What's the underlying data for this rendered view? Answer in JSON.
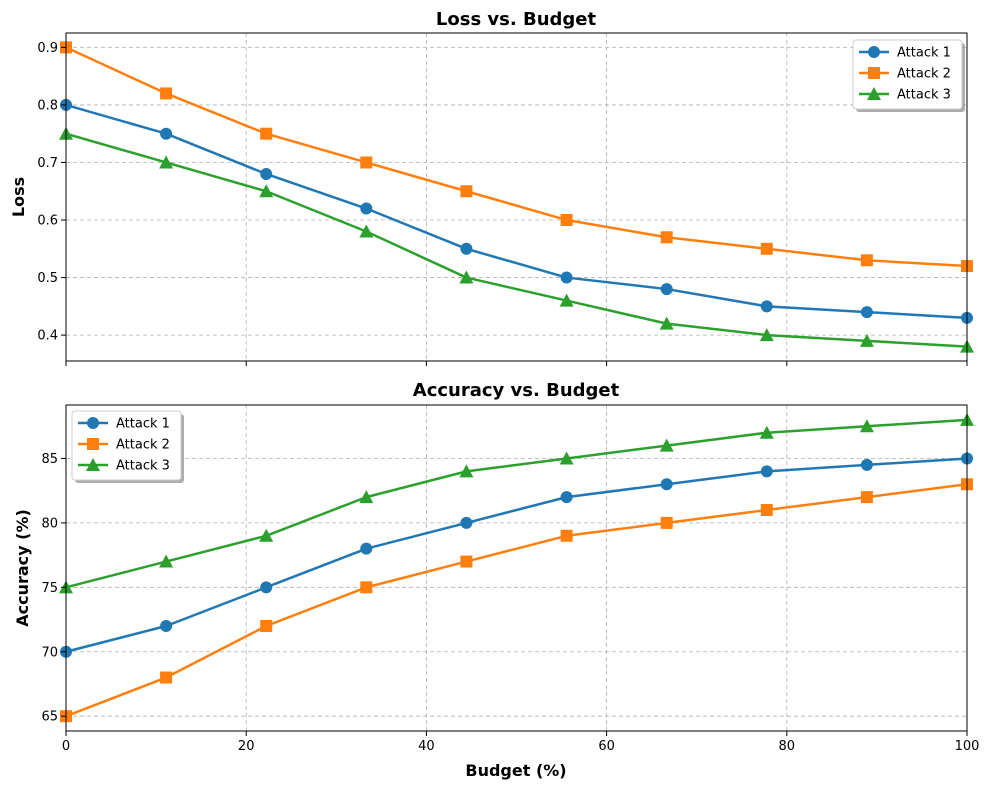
{
  "chart_data": [
    {
      "type": "line",
      "title": "Loss vs. Budget",
      "xlabel": "",
      "ylabel": "Loss",
      "xlim": [
        0,
        100
      ],
      "ylim": [
        0.355,
        0.925
      ],
      "xticks": [
        0,
        20,
        40,
        60,
        80,
        100
      ],
      "xtick_labels": [],
      "yticks": [
        0.4,
        0.5,
        0.6,
        0.7,
        0.8,
        0.9
      ],
      "ytick_labels": [
        "0.4",
        "0.5",
        "0.6",
        "0.7",
        "0.8",
        "0.9"
      ],
      "grid": true,
      "legend_position": "top-right",
      "x": [
        0,
        11.11,
        22.22,
        33.33,
        44.44,
        55.56,
        66.67,
        77.78,
        88.89,
        100
      ],
      "series": [
        {
          "name": "Attack 1",
          "color": "#1f77b4",
          "marker": "circle",
          "values": [
            0.8,
            0.75,
            0.68,
            0.62,
            0.55,
            0.5,
            0.48,
            0.45,
            0.44,
            0.43
          ]
        },
        {
          "name": "Attack 2",
          "color": "#ff7f0e",
          "marker": "square",
          "values": [
            0.9,
            0.82,
            0.75,
            0.7,
            0.65,
            0.6,
            0.57,
            0.55,
            0.53,
            0.52
          ]
        },
        {
          "name": "Attack 3",
          "color": "#2ca02c",
          "marker": "triangle",
          "values": [
            0.75,
            0.7,
            0.65,
            0.58,
            0.5,
            0.46,
            0.42,
            0.4,
            0.39,
            0.38
          ]
        }
      ]
    },
    {
      "type": "line",
      "title": "Accuracy vs. Budget",
      "xlabel": "Budget (%)",
      "ylabel": "Accuracy (%)",
      "xlim": [
        0,
        100
      ],
      "ylim": [
        63.85,
        89.15
      ],
      "xticks": [
        0,
        20,
        40,
        60,
        80,
        100
      ],
      "xtick_labels": [
        "0",
        "20",
        "40",
        "60",
        "80",
        "100"
      ],
      "yticks": [
        65,
        70,
        75,
        80,
        85
      ],
      "ytick_labels": [
        "65",
        "70",
        "75",
        "80",
        "85"
      ],
      "grid": true,
      "legend_position": "top-left",
      "x": [
        0,
        11.11,
        22.22,
        33.33,
        44.44,
        55.56,
        66.67,
        77.78,
        88.89,
        100
      ],
      "series": [
        {
          "name": "Attack 1",
          "color": "#1f77b4",
          "marker": "circle",
          "values": [
            70,
            72,
            75,
            78,
            80,
            82,
            83,
            84,
            84.5,
            85
          ]
        },
        {
          "name": "Attack 2",
          "color": "#ff7f0e",
          "marker": "square",
          "values": [
            65,
            68,
            72,
            75,
            77,
            79,
            80,
            81,
            82,
            83
          ]
        },
        {
          "name": "Attack 3",
          "color": "#2ca02c",
          "marker": "triangle",
          "values": [
            75,
            77,
            79,
            82,
            84,
            85,
            86,
            87,
            87.5,
            88
          ]
        }
      ]
    }
  ]
}
